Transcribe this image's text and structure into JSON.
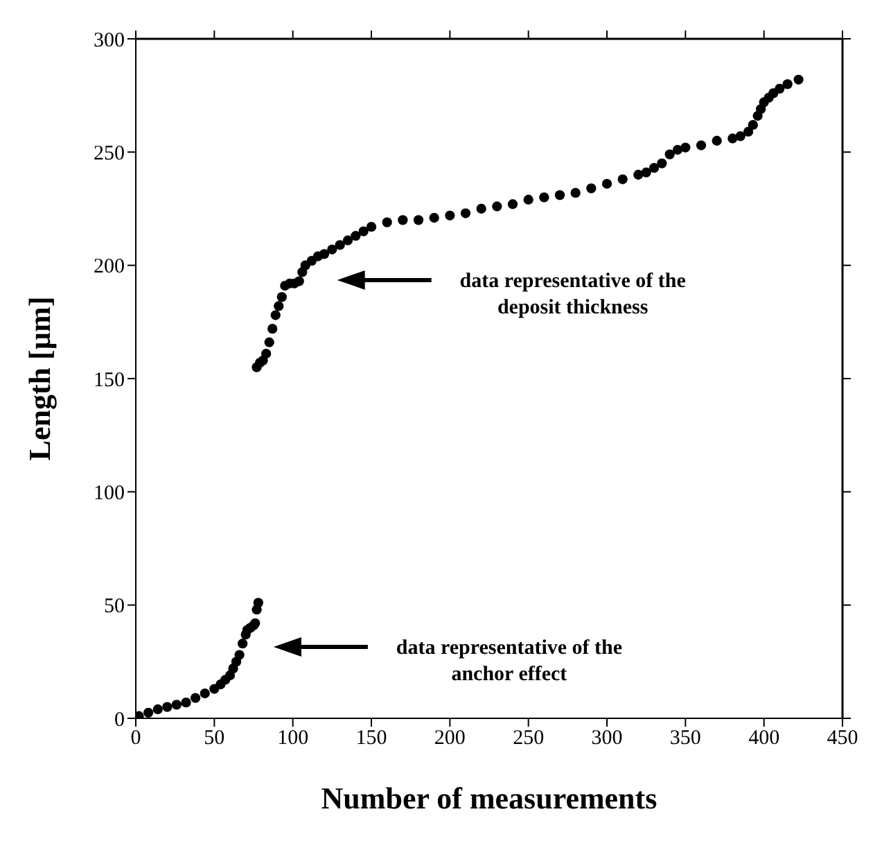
{
  "chart_data": {
    "type": "scatter",
    "xlabel": "Number of measurements",
    "ylabel": "Length [µm]",
    "marker": "circle",
    "xlim": [
      0,
      450
    ],
    "xticks": [
      0,
      50,
      100,
      150,
      200,
      250,
      300,
      350,
      400,
      450
    ],
    "ylim": [
      0,
      300
    ],
    "yticks": [
      0,
      50,
      100,
      150,
      200,
      250,
      300
    ],
    "annotations": [
      "data representative of the deposit thickness",
      "data representative of the anchor effect"
    ],
    "series": [
      {
        "color": "#000000",
        "x": [
          2,
          8,
          14,
          20,
          26,
          32,
          38,
          44,
          50,
          54,
          57,
          60,
          62,
          64,
          66,
          68,
          70,
          71,
          73,
          75,
          76,
          77,
          78,
          77,
          79,
          81,
          83,
          85,
          87,
          89,
          91,
          93,
          95,
          98,
          101,
          104,
          106,
          108,
          112,
          116,
          120,
          125,
          130,
          135,
          140,
          145,
          150,
          160,
          170,
          180,
          190,
          200,
          210,
          220,
          230,
          240,
          250,
          260,
          270,
          280,
          290,
          300,
          310,
          320,
          325,
          330,
          335,
          340,
          345,
          350,
          360,
          370,
          380,
          385,
          390,
          393,
          396,
          398,
          400,
          403,
          406,
          410,
          415,
          422
        ],
        "values": [
          1,
          2.5,
          4,
          5,
          6,
          7,
          9,
          11,
          13,
          15,
          17,
          19,
          22,
          25,
          28,
          33,
          37,
          39,
          40,
          41,
          42,
          48,
          51,
          155,
          157,
          158,
          161,
          166,
          172,
          178,
          182,
          186,
          191,
          192,
          192,
          193,
          197,
          200,
          202,
          204,
          205,
          207,
          209,
          211,
          213,
          215,
          217,
          219,
          220,
          220,
          221,
          222,
          223,
          225,
          226,
          227,
          229,
          230,
          231,
          232,
          234,
          236,
          238,
          240,
          241,
          243,
          245,
          249,
          251,
          252,
          253,
          255,
          256,
          257,
          259,
          262,
          266,
          269,
          272,
          274,
          276,
          278,
          280,
          282
        ]
      }
    ]
  }
}
